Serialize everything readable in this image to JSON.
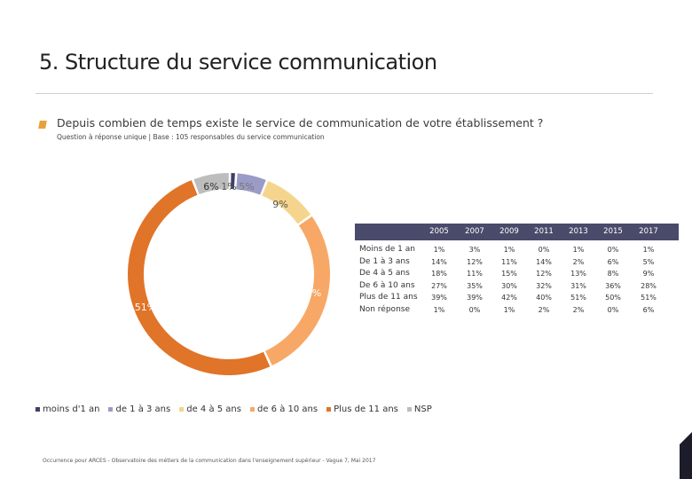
{
  "header": {
    "title": "5. Structure du service communication",
    "question": "Depuis combien de temps existe le service de communication de votre établissement ?",
    "subquestion": "Question à réponse unique | Base : 105 responsables du service communication"
  },
  "chart_data": {
    "type": "pie",
    "variant": "donut",
    "title": "Depuis combien de temps existe le service de communication de votre établissement ?",
    "categories": [
      "moins d'1 an",
      "de 1 à 3 ans",
      "de 4 à 5 ans",
      "de 6 à 10 ans",
      "Plus de 11 ans",
      "NSP"
    ],
    "values": [
      1,
      5,
      9,
      28,
      51,
      6
    ],
    "colors": [
      "#3f3f6a",
      "#9b9bc7",
      "#f5d58e",
      "#f7a866",
      "#e07428",
      "#bdbdbd"
    ],
    "data_labels": [
      "1%",
      "5%",
      "9%",
      "28%",
      "51%",
      "6%"
    ],
    "legend_position": "bottom"
  },
  "table": {
    "years": [
      "2005",
      "2007",
      "2009",
      "2011",
      "2013",
      "2015",
      "2017"
    ],
    "rows": [
      {
        "label": "Moins de 1 an",
        "values": [
          "1%",
          "3%",
          "1%",
          "0%",
          "1%",
          "0%",
          "1%"
        ]
      },
      {
        "label": "De 1 à 3 ans",
        "values": [
          "14%",
          "12%",
          "11%",
          "14%",
          "2%",
          "6%",
          "5%"
        ]
      },
      {
        "label": "De 4 à 5 ans",
        "values": [
          "18%",
          "11%",
          "15%",
          "12%",
          "13%",
          "8%",
          "9%"
        ]
      },
      {
        "label": "De 6 à 10 ans",
        "values": [
          "27%",
          "35%",
          "30%",
          "32%",
          "31%",
          "36%",
          "28%"
        ]
      },
      {
        "label": "Plus de 11 ans",
        "values": [
          "39%",
          "39%",
          "42%",
          "40%",
          "51%",
          "50%",
          "51%"
        ]
      },
      {
        "label": "Non réponse",
        "values": [
          "1%",
          "0%",
          "1%",
          "2%",
          "2%",
          "0%",
          "6%"
        ]
      }
    ]
  },
  "legend": {
    "items": [
      "moins d'1 an",
      "de 1 à 3 ans",
      "de 4 à 5 ans",
      "de 6 à 10 ans",
      "Plus de 11 ans",
      "NSP"
    ]
  },
  "footer": {
    "text": "Occurrence pour ARCES - Observatoire des métiers de la communication dans l'enseignement supérieur - Vague 7, Mai 2017"
  },
  "colors": {
    "accent": "#e8a13a",
    "table_header": "#4a4a6a"
  }
}
